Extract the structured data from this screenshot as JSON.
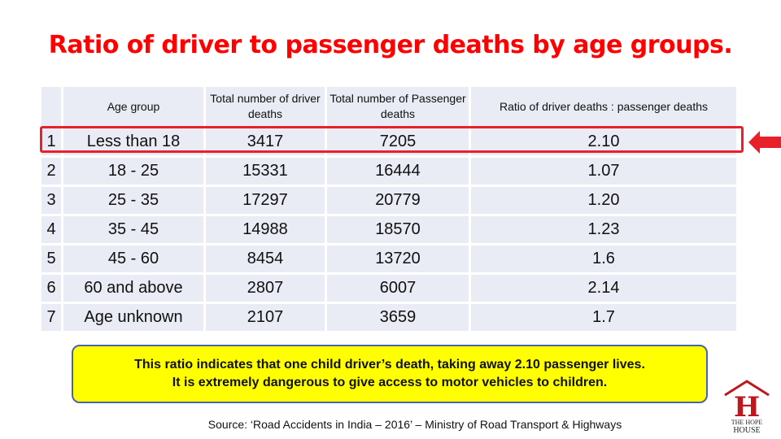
{
  "title": "Ratio of driver to passenger deaths by age groups.",
  "table": {
    "headers": [
      "",
      "Age group",
      "Total number of driver deaths",
      "Total number of Passenger deaths",
      "Ratio of driver deaths : passenger deaths"
    ],
    "rows": [
      [
        "1",
        "Less than 18",
        "3417",
        "7205",
        "2.10"
      ],
      [
        "2",
        "18 - 25",
        "15331",
        "16444",
        "1.07"
      ],
      [
        "3",
        "25 - 35",
        "17297",
        "20779",
        "1.20"
      ],
      [
        "4",
        "35 - 45",
        "14988",
        "18570",
        "1.23"
      ],
      [
        "5",
        "45 - 60",
        "8454",
        "13720",
        "1.6"
      ],
      [
        "6",
        "60 and above",
        "2807",
        "6007",
        "2.14"
      ],
      [
        "7",
        "Age unknown",
        "2107",
        "3659",
        "1.7"
      ]
    ],
    "highlighted_row": 1
  },
  "callout": {
    "line1": "This ratio indicates that one child driver’s death, taking away 2.10 passenger lives.",
    "line2": "It is extremely dangerous to give access to motor vehicles to children."
  },
  "source": "Source: ‘Road Accidents in India – 2016’ – Ministry of Road Transport & Highways",
  "logo": {
    "icon": "house-h-logo",
    "text": "THE HOPE HOUSE"
  },
  "colors": {
    "title": "#ff0000",
    "highlight": "#e8202a",
    "callout_bg": "#ffff00",
    "cell_bg": "#e9ebf5"
  }
}
